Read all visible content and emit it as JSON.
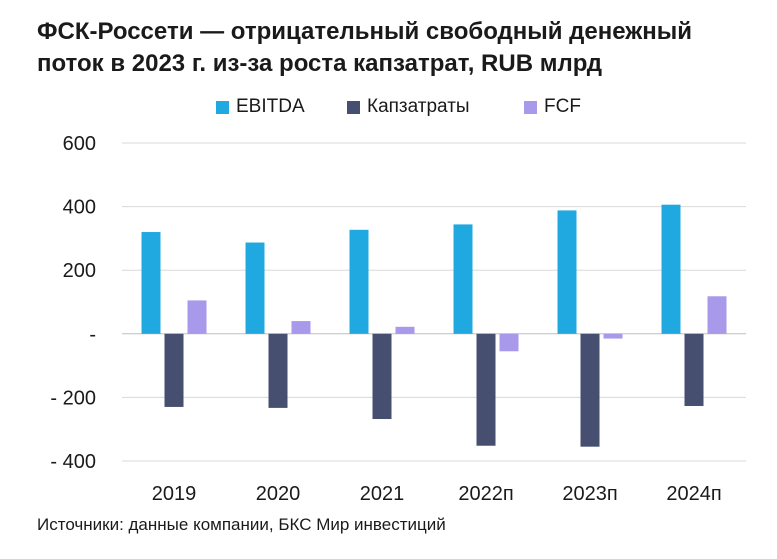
{
  "title": "ФСК-Россети — отрицательный свободный денежный поток в 2023 г. из-за роста капзатрат, RUB млрд",
  "source": "Источники: данные компании, БКС Мир инвестиций",
  "chart_data": {
    "type": "bar",
    "categories": [
      "2019",
      "2020",
      "2021",
      "2022п",
      "2023п",
      "2024п"
    ],
    "series": [
      {
        "name": "EBITDA",
        "color": "#1FA9E0",
        "values": [
          320,
          287,
          327,
          344,
          388,
          406
        ]
      },
      {
        "name": "Капзатраты",
        "color": "#464F6F",
        "values": [
          -230,
          -233,
          -268,
          -352,
          -355,
          -227
        ]
      },
      {
        "name": "FCF",
        "color": "#A899EA",
        "values": [
          105,
          40,
          22,
          -55,
          -15,
          118
        ]
      }
    ],
    "ylim": [
      -400,
      600
    ],
    "yticks": [
      {
        "value": 600,
        "label": "600"
      },
      {
        "value": 400,
        "label": "400"
      },
      {
        "value": 200,
        "label": "200"
      },
      {
        "value": 0,
        "label": "-"
      },
      {
        "value": -200,
        "label": "- 200"
      },
      {
        "value": -400,
        "label": "- 400"
      }
    ],
    "grid": true,
    "legend_position": "top"
  }
}
